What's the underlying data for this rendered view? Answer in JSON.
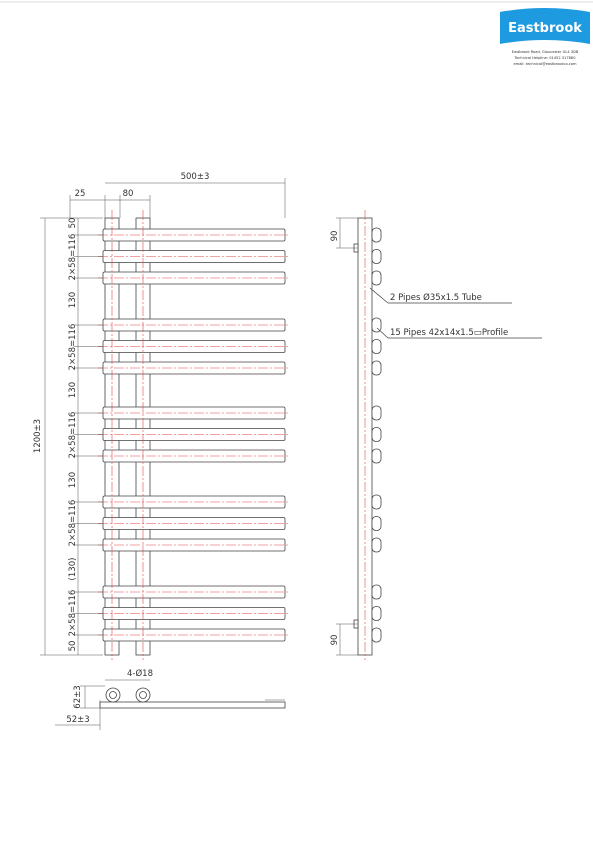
{
  "logo": {
    "name": "Eastbrook",
    "address": [
      "Eastbrook Road, Gloucester GL4 3DB",
      "Technical Helpline: 01452 317880",
      "email: technical@eastbrookco.com"
    ]
  },
  "front_view": {
    "width": "500±3",
    "offset": "25",
    "tube_spacing": "80",
    "height": "1200±3",
    "vertical_dims": [
      "50",
      "2×58=116",
      "130",
      "2×58=116",
      "130",
      "2×58=116",
      "130",
      "2×58=116",
      "(130)",
      "2×58=116",
      "50"
    ]
  },
  "side_view": {
    "top_offset": "90",
    "bottom_offset": "90",
    "callouts": [
      "2 Pipes Ø35x1.5 Tube",
      "15 Pipes 42x14x1.5▭Profile"
    ]
  },
  "plan_view": {
    "holes": "4-Ø18",
    "depth_outer": "62±3",
    "depth_inner": "52±3"
  }
}
